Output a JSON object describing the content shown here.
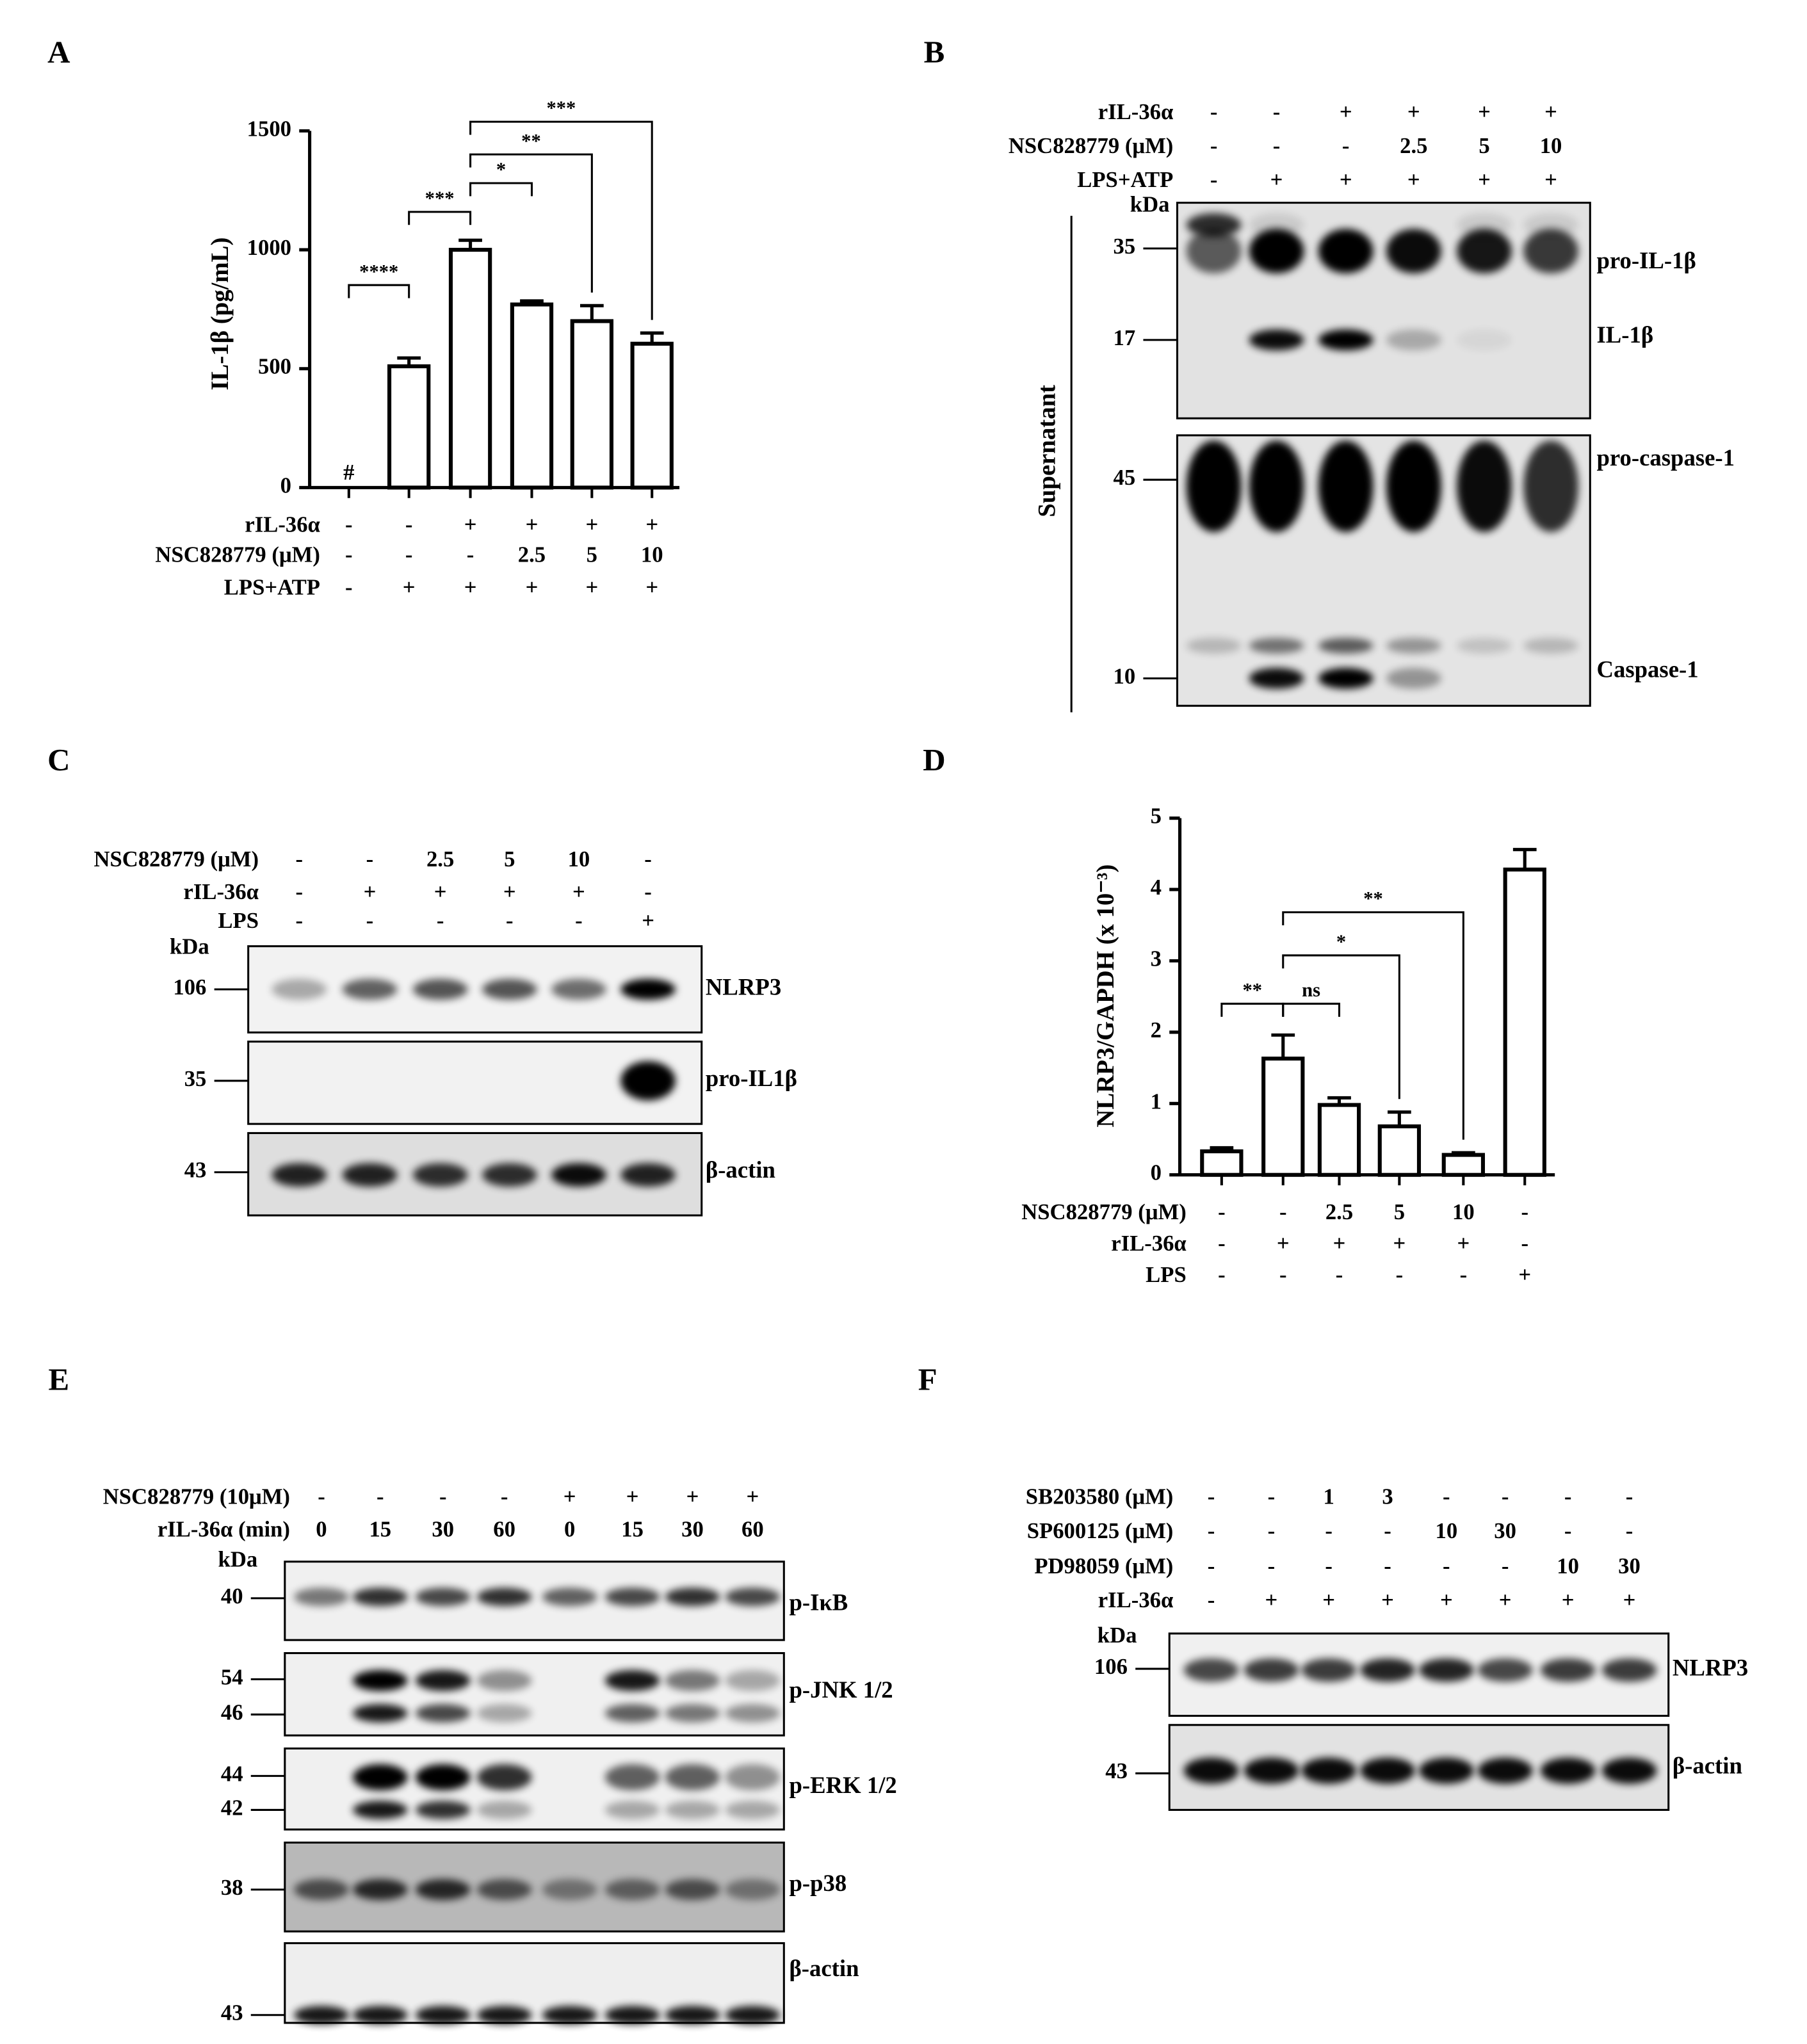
{
  "chart_data": [
    {
      "type": "bar",
      "panel": "A",
      "ylabel": "IL-1β (pg/mL)",
      "values": [
        null,
        510,
        1000,
        770,
        700,
        605
      ],
      "value_labels": [
        "#",
        null,
        null,
        null,
        null,
        null
      ],
      "errors": [
        null,
        35,
        40,
        15,
        65,
        45
      ],
      "ylim": [
        0,
        1500
      ],
      "yticks": [
        0,
        500,
        1000,
        1500
      ],
      "conditions": [
        {
          "label": "rIL-36α",
          "values": [
            "-",
            "-",
            "+",
            "+",
            "+",
            "+"
          ]
        },
        {
          "label": "NSC828779 (μM)",
          "values": [
            "-",
            "-",
            "-",
            "2.5",
            "5",
            "10"
          ]
        },
        {
          "label": "LPS+ATP",
          "values": [
            "-",
            "+",
            "+",
            "+",
            "+",
            "+"
          ]
        }
      ],
      "significance": [
        {
          "label": "****",
          "between": [
            0,
            1
          ]
        },
        {
          "label": "***",
          "between": [
            1,
            2
          ]
        },
        {
          "label": "*",
          "between": [
            2,
            3
          ]
        },
        {
          "label": "**",
          "between": [
            2,
            4
          ]
        },
        {
          "label": "***",
          "between": [
            2,
            5
          ]
        }
      ]
    },
    {
      "type": "bar",
      "panel": "D",
      "ylabel": "NLRP3/GAPDH (x 10⁻³)",
      "values": [
        0.33,
        1.63,
        0.98,
        0.68,
        0.28,
        4.28
      ],
      "errors": [
        0.05,
        0.33,
        0.1,
        0.2,
        0.03,
        0.28
      ],
      "ylim": [
        0,
        5
      ],
      "yticks": [
        0,
        1,
        2,
        3,
        4,
        5
      ],
      "conditions": [
        {
          "label": "NSC828779 (μM)",
          "values": [
            "-",
            "-",
            "2.5",
            "5",
            "10",
            "-"
          ]
        },
        {
          "label": "rIL-36α",
          "values": [
            "-",
            "+",
            "+",
            "+",
            "+",
            "-"
          ]
        },
        {
          "label": "LPS",
          "values": [
            "-",
            "-",
            "-",
            "-",
            "-",
            "+"
          ]
        }
      ],
      "significance": [
        {
          "label": "**",
          "between": [
            0,
            1
          ]
        },
        {
          "label": "ns",
          "between": [
            1,
            2
          ]
        },
        {
          "label": "*",
          "between": [
            1,
            3
          ]
        },
        {
          "label": "**",
          "between": [
            1,
            4
          ]
        }
      ]
    }
  ],
  "blots": [
    {
      "panel": "B",
      "kda_label": "kDa",
      "side_label": "Supernatant",
      "conditions": [
        {
          "label": "rIL-36α",
          "values": [
            "-",
            "-",
            "+",
            "+",
            "+",
            "+"
          ]
        },
        {
          "label": "NSC828779 (μM)",
          "values": [
            "-",
            "-",
            "-",
            "2.5",
            "5",
            "10"
          ]
        },
        {
          "label": "LPS+ATP",
          "values": [
            "-",
            "+",
            "+",
            "+",
            "+",
            "+"
          ]
        }
      ],
      "markers": [
        "35",
        "17",
        "45",
        "10"
      ],
      "bands": [
        "pro-IL-1β",
        "IL-1β",
        "pro-caspase-1",
        "Caspase-1"
      ]
    },
    {
      "panel": "C",
      "kda_label": "kDa",
      "conditions": [
        {
          "label": "NSC828779 (μM)",
          "values": [
            "-",
            "-",
            "2.5",
            "5",
            "10",
            "-"
          ]
        },
        {
          "label": "rIL-36α",
          "values": [
            "-",
            "+",
            "+",
            "+",
            "+",
            "-"
          ]
        },
        {
          "label": "LPS",
          "values": [
            "-",
            "-",
            "-",
            "-",
            "-",
            "+"
          ]
        }
      ],
      "markers": [
        "106",
        "35",
        "43"
      ],
      "bands": [
        "NLRP3",
        "pro-IL1β",
        "β-actin"
      ]
    },
    {
      "panel": "E",
      "kda_label": "kDa",
      "conditions": [
        {
          "label": "NSC828779 (10μM)",
          "values": [
            "-",
            "-",
            "-",
            "-",
            "+",
            "+",
            "+",
            "+"
          ]
        },
        {
          "label": "rIL-36α (min)",
          "values": [
            "0",
            "15",
            "30",
            "60",
            "0",
            "15",
            "30",
            "60"
          ]
        }
      ],
      "markers": [
        "40",
        "54",
        "46",
        "44",
        "42",
        "38",
        "43"
      ],
      "bands": [
        "p-IκB",
        "p-JNK 1/2",
        "p-ERK 1/2",
        "p-p38",
        "β-actin"
      ]
    },
    {
      "panel": "F",
      "kda_label": "kDa",
      "conditions": [
        {
          "label": "SB203580 (μM)",
          "values": [
            "-",
            "-",
            "1",
            "3",
            "-",
            "-",
            "-",
            "-"
          ]
        },
        {
          "label": "SP600125 (μM)",
          "values": [
            "-",
            "-",
            "-",
            "-",
            "10",
            "30",
            "-",
            "-"
          ]
        },
        {
          "label": "PD98059 (μM)",
          "values": [
            "-",
            "-",
            "-",
            "-",
            "-",
            "-",
            "10",
            "30"
          ]
        },
        {
          "label": "rIL-36α",
          "values": [
            "-",
            "+",
            "+",
            "+",
            "+",
            "+",
            "+",
            "+"
          ]
        }
      ],
      "markers": [
        "106",
        "43"
      ],
      "bands": [
        "NLRP3",
        "β-actin"
      ]
    }
  ]
}
